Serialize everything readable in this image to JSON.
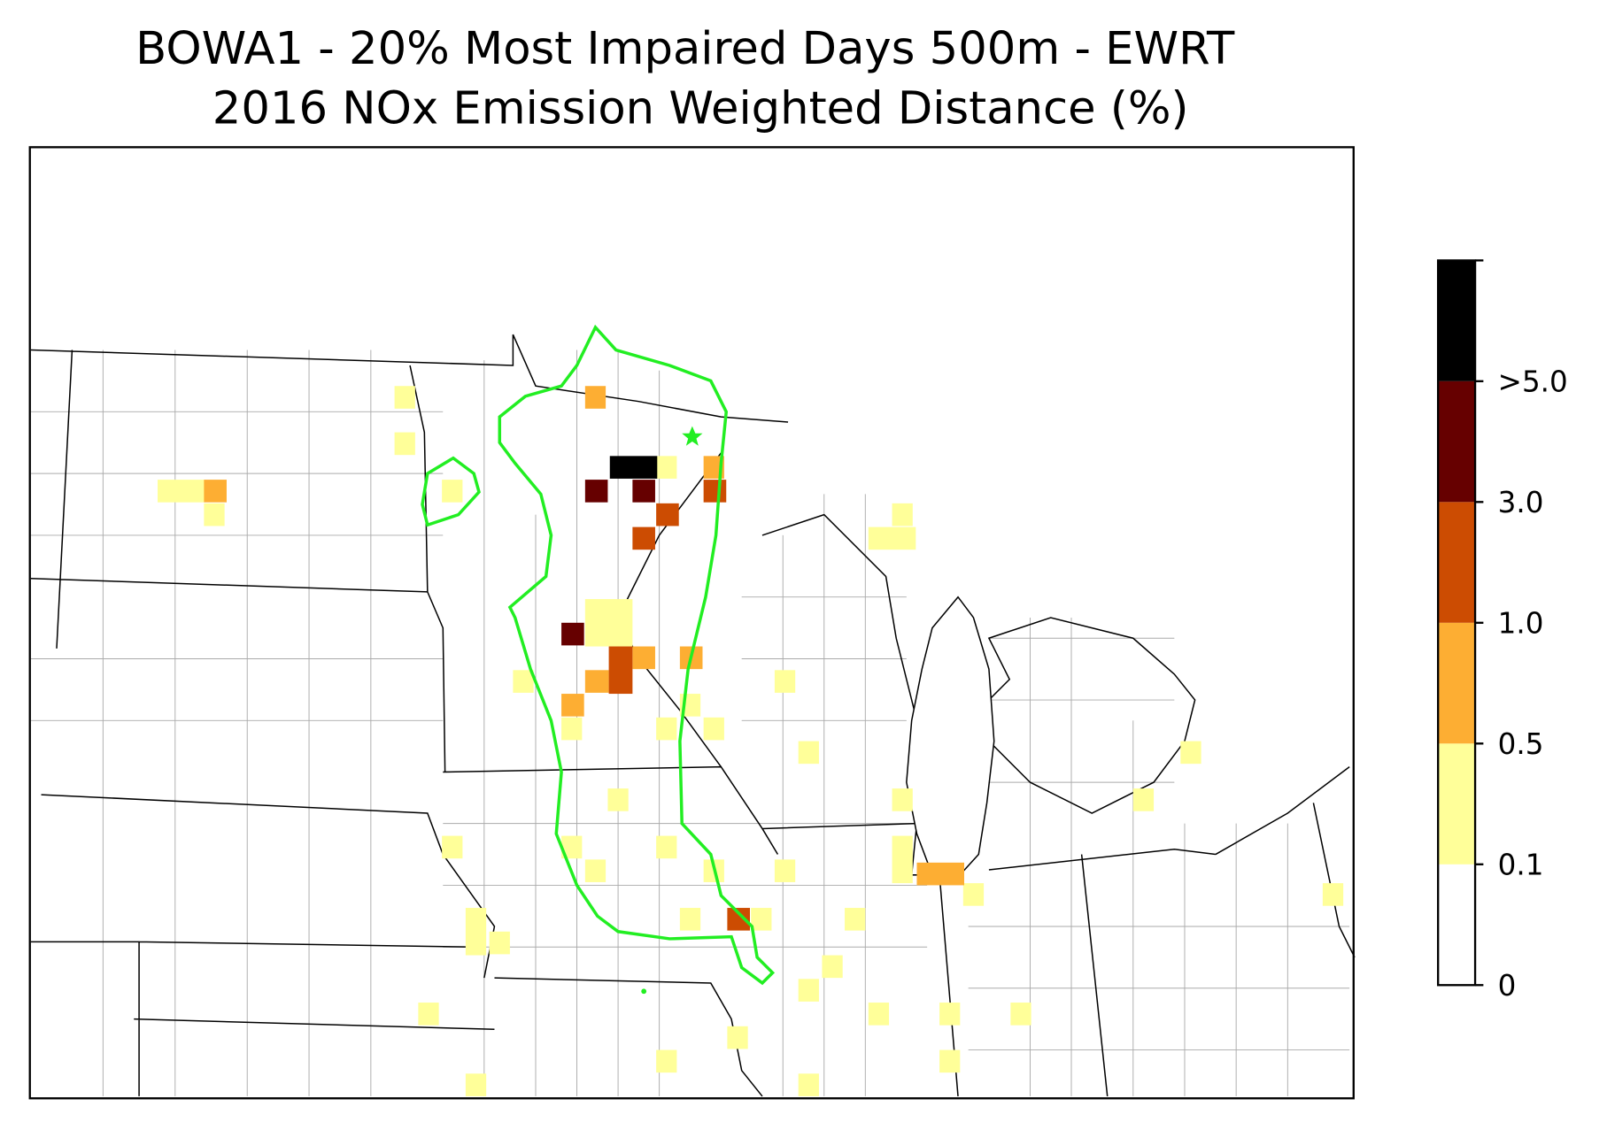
{
  "header": {
    "title": [
      "BOWA1 - 20% Most Impaired Days 500m - EWRT",
      "2016 NOx Emission Weighted Distance (%)"
    ]
  },
  "colorbar": {
    "colors": [
      "#ffffff",
      "#ffff99",
      "#fdae33",
      "#cc4c02",
      "#660000",
      "#000000"
    ],
    "labels": [
      "0",
      "0.1",
      "0.5",
      "1.0",
      "3.0",
      ">5.0"
    ]
  }
}
